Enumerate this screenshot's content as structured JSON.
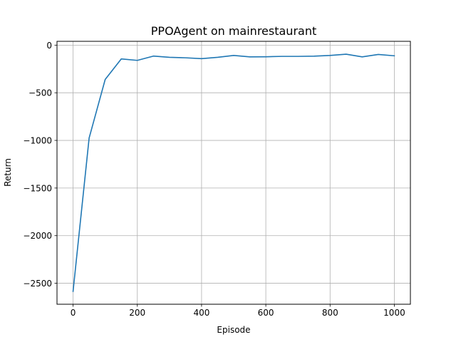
{
  "chart_data": {
    "type": "line",
    "title": "PPOAgent on mainrestaurant",
    "xlabel": "Episode",
    "ylabel": "Return",
    "xlim": [
      -50,
      1050
    ],
    "ylim": [
      -2720,
      40
    ],
    "xticks": [
      0,
      200,
      400,
      600,
      800,
      1000
    ],
    "yticks": [
      0,
      -500,
      -1000,
      -1500,
      -2000,
      -2500
    ],
    "xtick_labels": [
      "0",
      "200",
      "400",
      "600",
      "800",
      "1000"
    ],
    "ytick_labels": [
      "0",
      "−500",
      "−1000",
      "−1500",
      "−2000",
      "−2500"
    ],
    "grid": true,
    "series": [
      {
        "color": "#1f77b4",
        "x": [
          0,
          50,
          100,
          150,
          200,
          250,
          300,
          350,
          400,
          450,
          500,
          550,
          600,
          650,
          700,
          750,
          800,
          850,
          900,
          950,
          1000
        ],
        "y": [
          -2585,
          -975,
          -360,
          -145,
          -160,
          -115,
          -128,
          -133,
          -142,
          -128,
          -108,
          -123,
          -122,
          -118,
          -118,
          -116,
          -108,
          -95,
          -123,
          -98,
          -112
        ]
      }
    ]
  }
}
